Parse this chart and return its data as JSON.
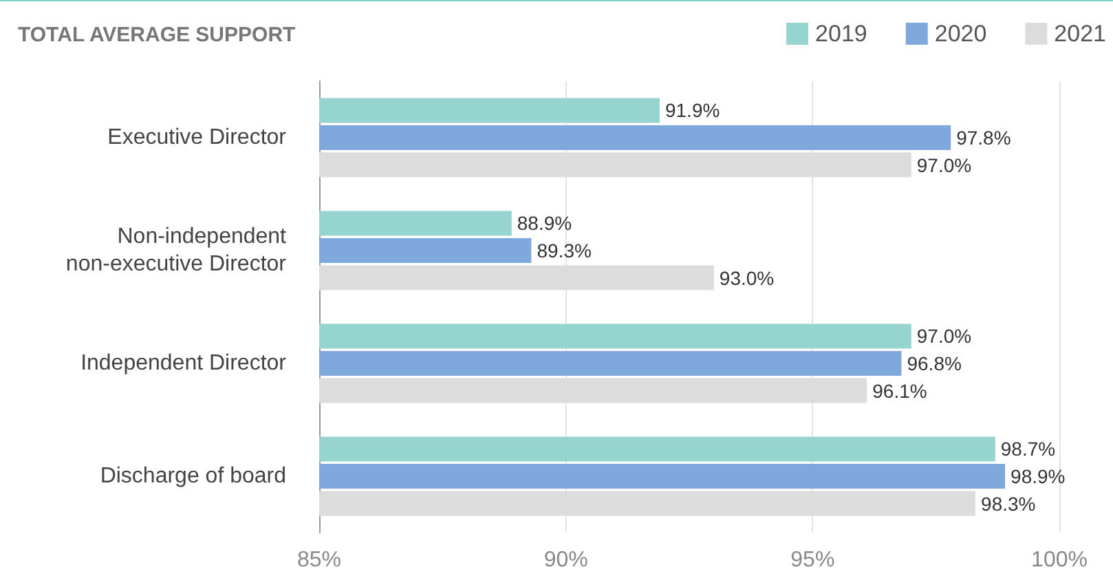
{
  "chart_data": {
    "type": "bar",
    "orientation": "horizontal",
    "title": "TOTAL AVERAGE SUPPORT",
    "categories": [
      "Executive Director",
      "Non-independent\nnon-executive Director",
      "Independent Director",
      "Discharge of board"
    ],
    "series": [
      {
        "name": "2019",
        "color": "#96d5cf",
        "values": [
          91.9,
          88.9,
          97.0,
          98.7
        ],
        "value_labels": [
          "91.9%",
          "88.9%",
          "97.0%",
          "98.7%"
        ]
      },
      {
        "name": "2020",
        "color": "#7fa8dc",
        "values": [
          97.8,
          89.3,
          96.8,
          98.9
        ],
        "value_labels": [
          "97.8%",
          "89.3%",
          "96.8%",
          "98.9%"
        ]
      },
      {
        "name": "2021",
        "color": "#dcdcdc",
        "values": [
          97.0,
          93.0,
          96.1,
          98.3
        ],
        "value_labels": [
          "97.0%",
          "93.0%",
          "96.1%",
          "98.3%"
        ]
      }
    ],
    "xlim": [
      85,
      100
    ],
    "xticks": [
      {
        "value": 85,
        "label": "85%"
      },
      {
        "value": 90,
        "label": "90%"
      },
      {
        "value": 95,
        "label": "95%"
      },
      {
        "value": 100,
        "label": "100%"
      }
    ],
    "grid": "x",
    "legend": "top right"
  }
}
